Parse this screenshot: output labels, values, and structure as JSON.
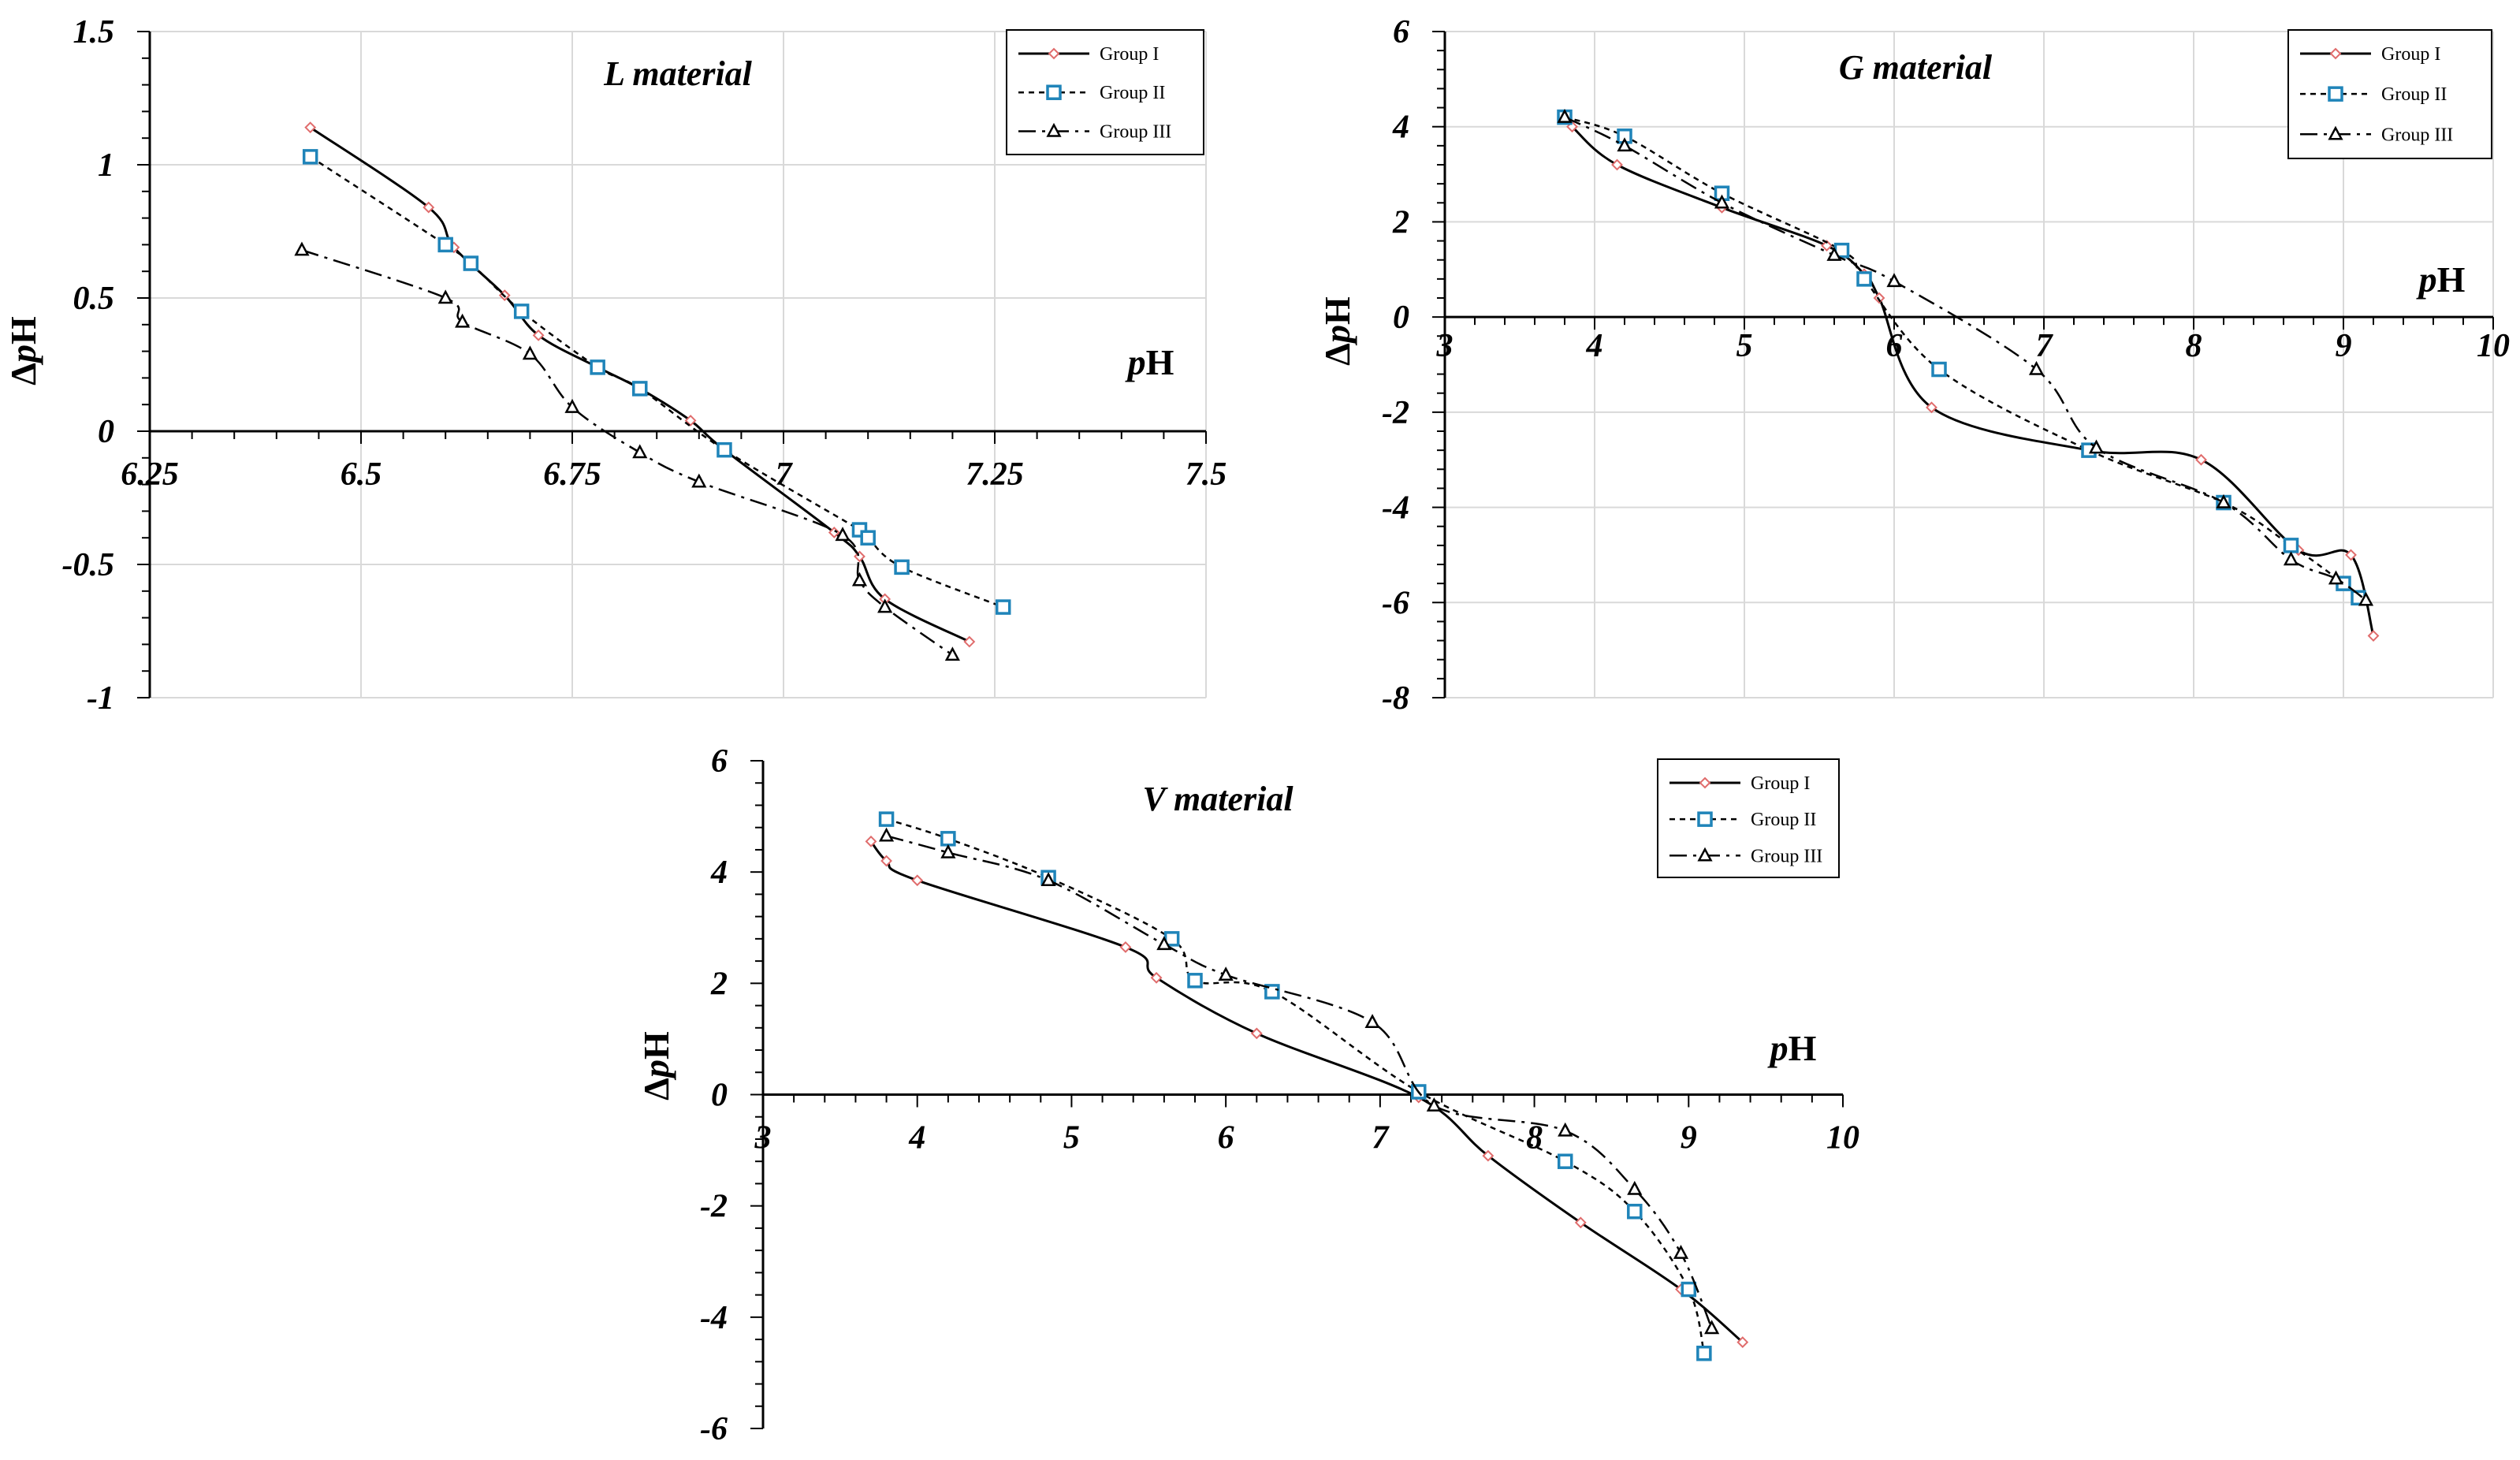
{
  "chart_data": [
    {
      "type": "line",
      "title": "L material",
      "xlabel": "pH",
      "ylabel": "ΔpH",
      "xlim": [
        6.25,
        7.5
      ],
      "ylim": [
        -1,
        1.5
      ],
      "x_ticks": [
        "6.25",
        "6.5",
        "6.75",
        "7",
        "7.25",
        "7.5"
      ],
      "y_ticks": [
        "-1",
        "-0.5",
        "0",
        "0.5",
        "1",
        "1.5"
      ],
      "grid": true,
      "legend": "top-right",
      "series": [
        {
          "name": "Group I",
          "x": [
            6.44,
            6.58,
            6.61,
            6.67,
            6.71,
            6.78,
            6.83,
            6.89,
            6.93,
            7.06,
            7.09,
            7.12,
            7.22
          ],
          "y": [
            1.14,
            0.84,
            0.69,
            0.51,
            0.36,
            0.24,
            0.16,
            0.04,
            -0.07,
            -0.38,
            -0.47,
            -0.63,
            -0.79
          ]
        },
        {
          "name": "Group II",
          "x": [
            6.44,
            6.6,
            6.63,
            6.69,
            6.78,
            6.83,
            6.93,
            7.09,
            7.1,
            7.14,
            7.26
          ],
          "y": [
            1.03,
            0.7,
            0.63,
            0.45,
            0.24,
            0.16,
            -0.07,
            -0.37,
            -0.4,
            -0.51,
            -0.66
          ]
        },
        {
          "name": "Group III",
          "x": [
            6.43,
            6.6,
            6.62,
            6.7,
            6.75,
            6.83,
            6.9,
            7.07,
            7.09,
            7.12,
            7.2
          ],
          "y": [
            0.68,
            0.5,
            0.41,
            0.29,
            0.09,
            -0.08,
            -0.19,
            -0.39,
            -0.56,
            -0.66,
            -0.84
          ]
        }
      ]
    },
    {
      "type": "line",
      "title": "G material",
      "xlabel": "pH",
      "ylabel": "ΔpH",
      "xlim": [
        3,
        10
      ],
      "ylim": [
        -8,
        6
      ],
      "x_ticks": [
        "3",
        "4",
        "5",
        "6",
        "7",
        "8",
        "9",
        "10"
      ],
      "y_ticks": [
        "-8",
        "-6",
        "-4",
        "-2",
        "0",
        "2",
        "4",
        "6"
      ],
      "grid": true,
      "legend": "top-right",
      "series": [
        {
          "name": "Group I",
          "x": [
            3.8,
            3.85,
            4.15,
            4.85,
            5.55,
            5.8,
            5.9,
            6.25,
            7.3,
            8.05,
            8.7,
            9.05,
            9.2
          ],
          "y": [
            4.2,
            4.0,
            3.2,
            2.3,
            1.5,
            0.9,
            0.4,
            -1.9,
            -2.8,
            -3.0,
            -4.9,
            -5.0,
            -6.7
          ]
        },
        {
          "name": "Group II",
          "x": [
            3.8,
            4.2,
            4.85,
            5.65,
            5.8,
            6.3,
            7.3,
            8.2,
            8.65,
            9.0,
            9.1
          ],
          "y": [
            4.2,
            3.8,
            2.6,
            1.4,
            0.8,
            -1.1,
            -2.8,
            -3.9,
            -4.8,
            -5.6,
            -5.9
          ]
        },
        {
          "name": "Group III",
          "x": [
            3.8,
            4.2,
            4.85,
            5.6,
            6.0,
            6.95,
            7.35,
            8.2,
            8.65,
            8.95,
            9.15
          ],
          "y": [
            4.2,
            3.6,
            2.4,
            1.3,
            0.75,
            -1.1,
            -2.75,
            -3.9,
            -5.1,
            -5.5,
            -5.95
          ]
        }
      ]
    },
    {
      "type": "line",
      "title": "V material",
      "xlabel": "pH",
      "ylabel": "ΔpH",
      "xlim": [
        3,
        10
      ],
      "ylim": [
        -6,
        6
      ],
      "x_ticks": [
        "3",
        "4",
        "5",
        "6",
        "7",
        "8",
        "9",
        "10"
      ],
      "y_ticks": [
        "-6",
        "-4",
        "-2",
        "0",
        "2",
        "4",
        "6"
      ],
      "grid": false,
      "legend": "top-right",
      "series": [
        {
          "name": "Group I",
          "x": [
            3.7,
            3.8,
            4.0,
            5.35,
            5.55,
            6.2,
            7.25,
            7.7,
            8.3,
            8.95,
            9.35
          ],
          "y": [
            4.55,
            4.2,
            3.85,
            2.65,
            2.1,
            1.1,
            -0.05,
            -1.1,
            -2.3,
            -3.5,
            -4.45
          ]
        },
        {
          "name": "Group II",
          "x": [
            3.8,
            4.2,
            4.85,
            5.65,
            5.8,
            6.3,
            7.25,
            8.2,
            8.65,
            9.0,
            9.1
          ],
          "y": [
            4.95,
            4.6,
            3.9,
            2.8,
            2.05,
            1.85,
            0.05,
            -1.2,
            -2.1,
            -3.5,
            -4.65
          ]
        },
        {
          "name": "Group III",
          "x": [
            3.8,
            4.2,
            4.85,
            5.6,
            6.0,
            6.95,
            7.35,
            8.2,
            8.65,
            8.95,
            9.15
          ],
          "y": [
            4.65,
            4.35,
            3.85,
            2.7,
            2.15,
            1.3,
            -0.2,
            -0.65,
            -1.7,
            -2.85,
            -4.2
          ]
        }
      ]
    }
  ]
}
